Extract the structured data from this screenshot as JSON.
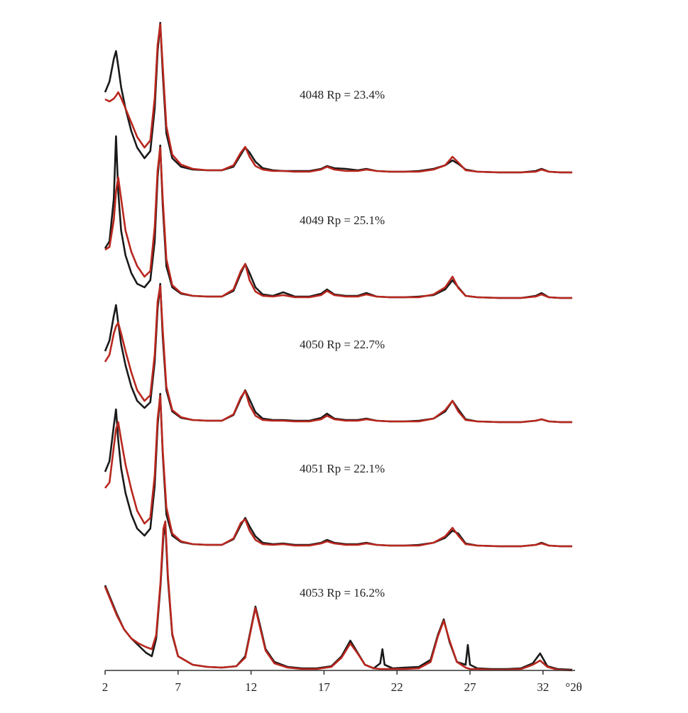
{
  "chart_data": [
    {
      "type": "line",
      "annotation": "4048 Rp = 23.4%",
      "x": [
        2,
        2.3,
        2.6,
        2.75,
        2.9,
        3.1,
        3.4,
        3.8,
        4.2,
        4.7,
        5.1,
        5.4,
        5.6,
        5.78,
        5.95,
        6.2,
        6.6,
        7.2,
        8,
        9,
        10,
        10.8,
        11.3,
        11.6,
        11.9,
        12.3,
        12.8,
        13.5,
        14.2,
        15,
        16,
        16.8,
        17.2,
        17.7,
        18.5,
        19.3,
        19.9,
        20.6,
        21.5,
        22.5,
        23.5,
        24.5,
        25.3,
        25.8,
        26.2,
        26.7,
        27.5,
        29,
        30.5,
        31.5,
        31.9,
        32.4,
        33.2,
        34
      ],
      "xlim": [
        2,
        34.2
      ],
      "ylim": [
        0,
        240
      ],
      "series": [
        {
          "color": "#1a1a1a",
          "values": [
            113,
            128,
            160,
            171,
            150,
            120,
            90,
            58,
            35,
            20,
            30,
            90,
            170,
            211,
            140,
            55,
            20,
            8,
            4,
            3,
            3,
            8,
            25,
            35,
            28,
            15,
            6,
            3,
            2,
            2,
            2,
            5,
            9,
            6,
            5,
            3,
            5,
            2,
            1,
            1,
            2,
            5,
            10,
            17,
            12,
            4,
            1,
            0,
            0,
            2,
            5,
            1,
            0,
            0
          ]
        },
        {
          "color": "#b8271e",
          "values": [
            103,
            100,
            104,
            108,
            113,
            105,
            90,
            70,
            50,
            35,
            45,
            105,
            180,
            209,
            150,
            65,
            25,
            11,
            5,
            3,
            3,
            10,
            28,
            36,
            22,
            9,
            4,
            2,
            2,
            1,
            1,
            4,
            8,
            4,
            2,
            2,
            4,
            2,
            1,
            1,
            1,
            4,
            10,
            22,
            14,
            3,
            1,
            0,
            0,
            1,
            4,
            1,
            0,
            0
          ]
        }
      ]
    },
    {
      "type": "line",
      "annotation": "4049 Rp = 25.1%",
      "x": [
        2,
        2.3,
        2.6,
        2.75,
        2.9,
        3.1,
        3.4,
        3.8,
        4.2,
        4.7,
        5.1,
        5.4,
        5.6,
        5.78,
        5.95,
        6.2,
        6.6,
        7.2,
        8,
        9,
        10,
        10.8,
        11.3,
        11.6,
        11.9,
        12.3,
        12.8,
        13.5,
        14.2,
        15,
        16,
        16.8,
        17.2,
        17.7,
        18.5,
        19.3,
        19.9,
        20.6,
        21.5,
        22.5,
        23.5,
        24.5,
        25.3,
        25.8,
        26.2,
        26.7,
        27.5,
        29,
        30.5,
        31.5,
        31.9,
        32.4,
        33.2,
        34
      ],
      "xlim": [
        2,
        34.2
      ],
      "ylim": [
        0,
        240
      ],
      "series": [
        {
          "color": "#1a1a1a",
          "values": [
            70,
            80,
            140,
            228,
            150,
            95,
            60,
            35,
            20,
            15,
            25,
            80,
            170,
            215,
            130,
            45,
            15,
            6,
            3,
            2,
            2,
            10,
            35,
            48,
            35,
            15,
            5,
            3,
            8,
            2,
            2,
            6,
            12,
            5,
            3,
            3,
            7,
            2,
            1,
            1,
            2,
            4,
            12,
            25,
            15,
            3,
            1,
            0,
            0,
            3,
            7,
            1,
            0,
            0
          ]
        },
        {
          "color": "#b8271e",
          "values": [
            68,
            72,
            110,
            150,
            170,
            140,
            95,
            65,
            45,
            30,
            38,
            100,
            180,
            212,
            140,
            55,
            18,
            7,
            3,
            2,
            2,
            12,
            38,
            48,
            25,
            9,
            3,
            2,
            4,
            1,
            1,
            4,
            10,
            4,
            2,
            2,
            5,
            2,
            1,
            1,
            1,
            5,
            15,
            30,
            14,
            3,
            1,
            0,
            0,
            2,
            5,
            1,
            0,
            0
          ]
        }
      ]
    },
    {
      "type": "line",
      "annotation": "4050 Rp = 22.7%",
      "x": [
        2,
        2.3,
        2.6,
        2.75,
        2.9,
        3.1,
        3.4,
        3.8,
        4.2,
        4.7,
        5.1,
        5.4,
        5.6,
        5.78,
        5.95,
        6.2,
        6.6,
        7.2,
        8,
        9,
        10,
        10.8,
        11.3,
        11.6,
        11.9,
        12.3,
        12.8,
        13.5,
        14.2,
        15,
        16,
        16.8,
        17.2,
        17.7,
        18.5,
        19.3,
        19.9,
        20.6,
        21.5,
        22.5,
        23.5,
        24.5,
        25.3,
        25.8,
        26.2,
        26.7,
        27.5,
        29,
        30.5,
        31.5,
        31.9,
        32.4,
        33.2,
        34
      ],
      "xlim": [
        2,
        34.2
      ],
      "ylim": [
        0,
        240
      ],
      "series": [
        {
          "color": "#1a1a1a",
          "values": [
            100,
            115,
            150,
            165,
            140,
            110,
            80,
            50,
            30,
            20,
            28,
            85,
            160,
            195,
            120,
            45,
            15,
            6,
            3,
            2,
            2,
            10,
            33,
            45,
            32,
            14,
            5,
            3,
            3,
            2,
            2,
            6,
            12,
            5,
            3,
            3,
            5,
            2,
            1,
            1,
            2,
            5,
            15,
            30,
            18,
            4,
            1,
            0,
            0,
            2,
            4,
            1,
            0,
            0
          ]
        },
        {
          "color": "#b8271e",
          "values": [
            85,
            95,
            125,
            135,
            140,
            125,
            100,
            70,
            45,
            30,
            38,
            95,
            170,
            192,
            130,
            50,
            17,
            7,
            3,
            2,
            2,
            11,
            35,
            44,
            24,
            9,
            3,
            2,
            2,
            1,
            1,
            4,
            9,
            4,
            2,
            2,
            4,
            2,
            1,
            1,
            1,
            5,
            17,
            30,
            15,
            3,
            1,
            0,
            0,
            2,
            4,
            1,
            0,
            0
          ]
        }
      ]
    },
    {
      "type": "line",
      "annotation": "4051 Rp = 22.1%",
      "x": [
        2,
        2.3,
        2.6,
        2.75,
        2.9,
        3.1,
        3.4,
        3.8,
        4.2,
        4.7,
        5.1,
        5.4,
        5.6,
        5.78,
        5.95,
        6.2,
        6.6,
        7.2,
        8,
        9,
        10,
        10.8,
        11.3,
        11.6,
        11.9,
        12.3,
        12.8,
        13.5,
        14.2,
        15,
        16,
        16.8,
        17.2,
        17.7,
        18.5,
        19.3,
        19.9,
        20.6,
        21.5,
        22.5,
        23.5,
        24.5,
        25.3,
        25.8,
        26.2,
        26.7,
        27.5,
        29,
        30.5,
        31.5,
        31.9,
        32.4,
        33.2,
        34
      ],
      "xlim": [
        2,
        34.2
      ],
      "ylim": [
        0,
        240
      ],
      "series": [
        {
          "color": "#1a1a1a",
          "values": [
            105,
            120,
            170,
            193,
            150,
            110,
            75,
            45,
            25,
            15,
            25,
            85,
            170,
            215,
            130,
            45,
            15,
            6,
            3,
            2,
            2,
            10,
            30,
            40,
            28,
            14,
            5,
            3,
            4,
            2,
            2,
            5,
            9,
            5,
            3,
            3,
            5,
            2,
            1,
            1,
            2,
            5,
            12,
            22,
            18,
            4,
            1,
            0,
            0,
            2,
            5,
            1,
            0,
            0
          ]
        },
        {
          "color": "#b8271e",
          "values": [
            82,
            90,
            140,
            165,
            175,
            150,
            115,
            80,
            50,
            32,
            40,
            100,
            180,
            212,
            135,
            55,
            18,
            7,
            3,
            2,
            2,
            11,
            33,
            38,
            22,
            9,
            3,
            2,
            3,
            1,
            1,
            4,
            7,
            4,
            2,
            2,
            4,
            2,
            1,
            1,
            1,
            5,
            14,
            26,
            15,
            3,
            1,
            0,
            0,
            2,
            4,
            1,
            0,
            0
          ]
        }
      ]
    },
    {
      "type": "line",
      "annotation": "4053 Rp = 16.2%",
      "x": [
        2,
        2.4,
        2.8,
        3.3,
        3.8,
        4.3,
        4.8,
        5.2,
        5.5,
        5.8,
        6.0,
        6.13,
        6.3,
        6.6,
        7,
        8,
        9,
        10,
        11,
        11.6,
        12,
        12.3,
        12.6,
        13,
        13.6,
        14.5,
        15.5,
        16.5,
        17.5,
        18.2,
        18.8,
        19.3,
        19.8,
        20.4,
        20.85,
        21.0,
        21.15,
        21.7,
        22.5,
        23.5,
        24.3,
        24.8,
        25.2,
        25.6,
        26.1,
        26.7,
        26.85,
        27.0,
        27.5,
        28.5,
        29.5,
        30.5,
        31.3,
        31.8,
        32.3,
        33,
        34
      ],
      "xlim": [
        2,
        34.2
      ],
      "ylim": [
        0,
        240
      ],
      "xticks": [
        2,
        7,
        12,
        17,
        22,
        27,
        32
      ],
      "xlabel": "°2θ",
      "series": [
        {
          "color": "#1a1a1a",
          "values": [
            120,
            100,
            80,
            58,
            45,
            35,
            25,
            20,
            45,
            120,
            190,
            205,
            130,
            50,
            20,
            8,
            5,
            4,
            6,
            20,
            60,
            90,
            65,
            30,
            12,
            5,
            3,
            3,
            6,
            20,
            42,
            25,
            8,
            3,
            10,
            30,
            8,
            3,
            4,
            5,
            15,
            50,
            72,
            40,
            12,
            8,
            36,
            8,
            3,
            2,
            2,
            3,
            10,
            24,
            6,
            2,
            1
          ]
        },
        {
          "color": "#b8271e",
          "values": [
            118,
            98,
            78,
            58,
            45,
            38,
            33,
            30,
            50,
            125,
            200,
            210,
            135,
            52,
            20,
            8,
            5,
            4,
            6,
            18,
            58,
            88,
            62,
            28,
            10,
            4,
            2,
            2,
            5,
            18,
            38,
            24,
            8,
            3,
            2,
            2,
            2,
            2,
            2,
            3,
            12,
            48,
            70,
            42,
            12,
            4,
            3,
            2,
            2,
            1,
            1,
            2,
            8,
            14,
            5,
            1,
            0
          ]
        }
      ]
    }
  ]
}
